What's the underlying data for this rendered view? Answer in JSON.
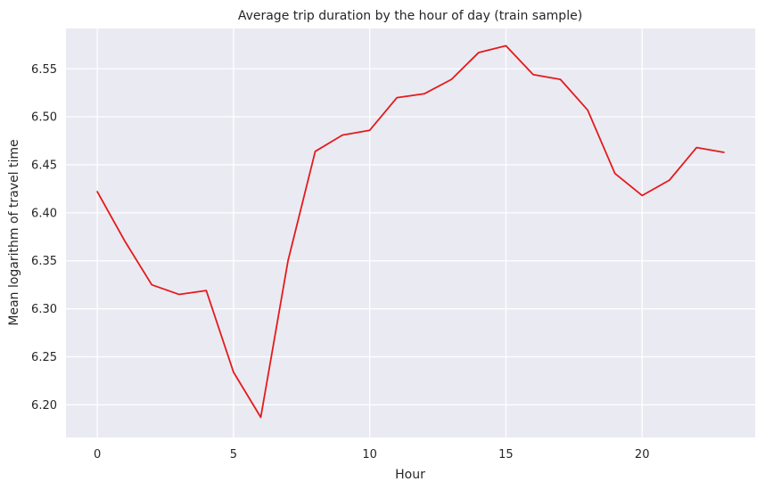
{
  "chart_data": {
    "type": "line",
    "title": "Average trip duration by the hour of day (train sample)",
    "xlabel": "Hour",
    "ylabel": "Mean logarithm of travel time",
    "grid": true,
    "background_color": "#EAEAF2",
    "grid_color": "#FFFFFF",
    "xlim": [
      -1.15,
      24.15
    ],
    "ylim": [
      6.166,
      6.592
    ],
    "xticks": [
      0,
      5,
      10,
      15,
      20
    ],
    "yticks": [
      6.2,
      6.25,
      6.3,
      6.35,
      6.4,
      6.45,
      6.5,
      6.55
    ],
    "ytick_labels": [
      "6.20",
      "6.25",
      "6.30",
      "6.35",
      "6.40",
      "6.45",
      "6.50",
      "6.55"
    ],
    "series": [
      {
        "color": "#E41A1C",
        "x": [
          0,
          1,
          2,
          3,
          4,
          5,
          6,
          7,
          8,
          9,
          10,
          11,
          12,
          13,
          14,
          15,
          16,
          17,
          18,
          19,
          20,
          21,
          22,
          23
        ],
        "y": [
          6.422,
          6.371,
          6.325,
          6.315,
          6.319,
          6.234,
          6.187,
          6.35,
          6.464,
          6.481,
          6.486,
          6.52,
          6.524,
          6.539,
          6.567,
          6.574,
          6.544,
          6.539,
          6.507,
          6.441,
          6.418,
          6.434,
          6.468,
          6.463
        ]
      }
    ]
  }
}
